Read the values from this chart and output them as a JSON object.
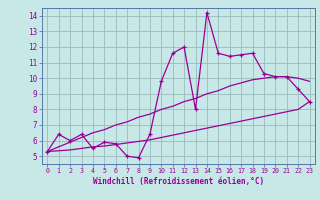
{
  "title": "",
  "xlabel": "Windchill (Refroidissement éolien,°C)",
  "x_data": [
    0,
    1,
    2,
    3,
    4,
    5,
    6,
    7,
    8,
    9,
    10,
    11,
    12,
    13,
    14,
    15,
    16,
    17,
    18,
    19,
    20,
    21,
    22,
    23
  ],
  "y_main": [
    5.3,
    6.4,
    6.0,
    6.4,
    5.5,
    5.9,
    5.8,
    5.0,
    4.9,
    6.4,
    9.8,
    11.6,
    12.0,
    8.0,
    14.2,
    11.6,
    11.4,
    11.5,
    11.6,
    10.3,
    10.1,
    10.1,
    9.3,
    8.5
  ],
  "y_upper": [
    5.3,
    5.6,
    5.9,
    6.2,
    6.5,
    6.7,
    7.0,
    7.2,
    7.5,
    7.7,
    8.0,
    8.2,
    8.5,
    8.7,
    9.0,
    9.2,
    9.5,
    9.7,
    9.9,
    10.0,
    10.1,
    10.1,
    10.0,
    9.8
  ],
  "y_lower": [
    5.3,
    5.35,
    5.4,
    5.5,
    5.6,
    5.65,
    5.75,
    5.85,
    5.95,
    6.05,
    6.2,
    6.35,
    6.5,
    6.65,
    6.8,
    6.95,
    7.1,
    7.25,
    7.4,
    7.55,
    7.7,
    7.85,
    8.0,
    8.5
  ],
  "line_color": "#990099",
  "bg_color": "#c8e8e8",
  "grid_color": "#99bbbb",
  "ylim": [
    4.5,
    14.5
  ],
  "xlim": [
    -0.5,
    23.5
  ],
  "yticks": [
    5,
    6,
    7,
    8,
    9,
    10,
    11,
    12,
    13,
    14
  ],
  "xticks": [
    0,
    1,
    2,
    3,
    4,
    5,
    6,
    7,
    8,
    9,
    10,
    11,
    12,
    13,
    14,
    15,
    16,
    17,
    18,
    19,
    20,
    21,
    22,
    23
  ]
}
